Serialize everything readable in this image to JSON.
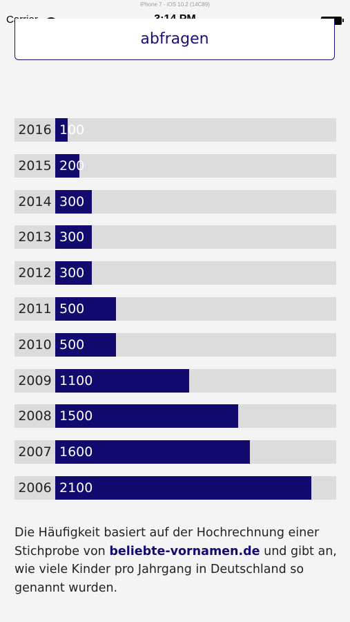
{
  "simulator_title": "iPhone 7 - iOS 10.2 (14C89)",
  "status_bar": {
    "carrier": "Carrier",
    "time": "3:14 PM"
  },
  "query_button": {
    "label": "abfragen"
  },
  "chart_data": {
    "type": "bar",
    "orientation": "horizontal",
    "categories": [
      "2016",
      "2015",
      "2014",
      "2013",
      "2012",
      "2011",
      "2010",
      "2009",
      "2008",
      "2007",
      "2006"
    ],
    "values": [
      100,
      200,
      300,
      300,
      300,
      500,
      500,
      1100,
      1500,
      1600,
      2100
    ],
    "title": "",
    "xlim": [
      0,
      2400
    ],
    "bar_color": "#130a70",
    "track_color": "#dcdcdc"
  },
  "footnote": {
    "before": "Die Häufigkeit basiert auf der Hochrechnung einer Stichprobe von ",
    "link": "beliebte-vornamen.de",
    "after": " und gibt an, wie viele Kinder pro Jahrgang in Deutschland so genannt wurden."
  }
}
